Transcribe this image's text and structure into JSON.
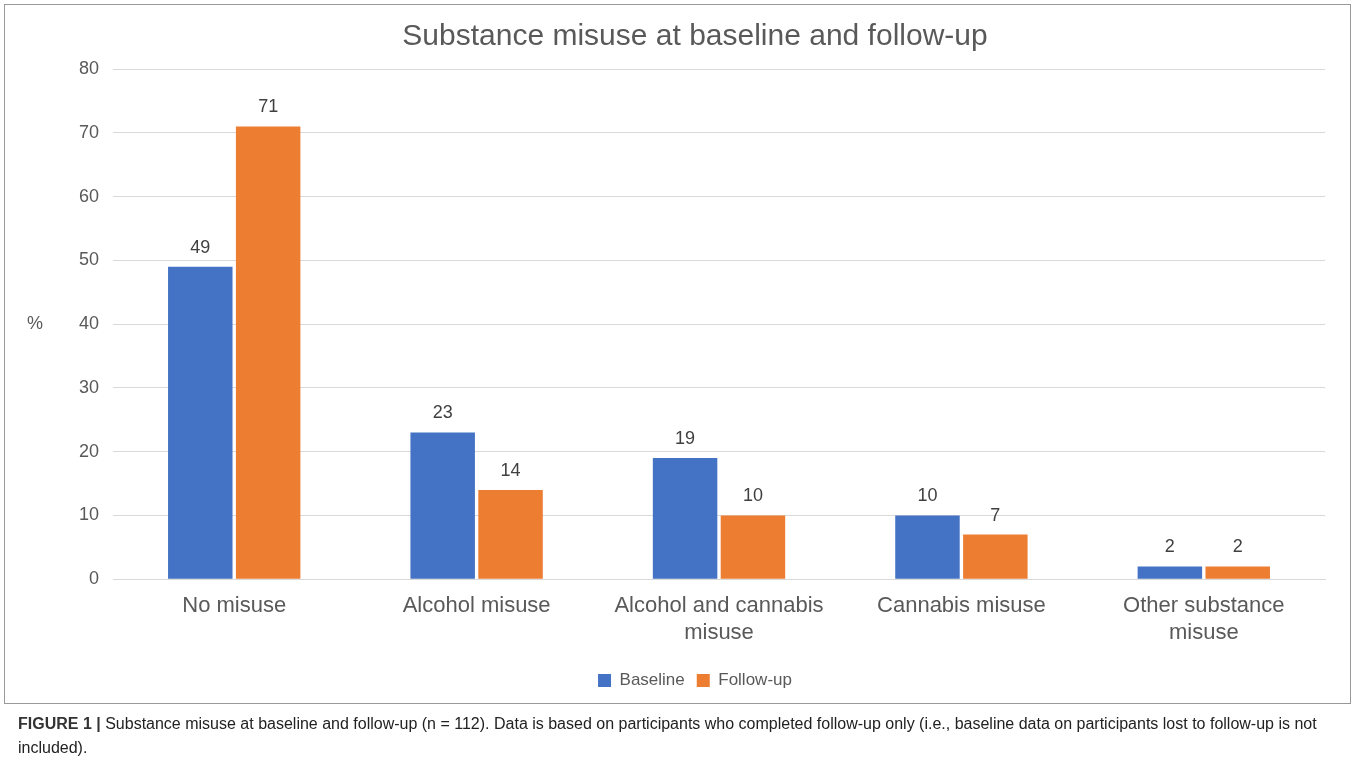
{
  "chart_data": {
    "type": "bar",
    "title": "Substance misuse at baseline and follow-up",
    "ylabel": "%",
    "categories": [
      "No misuse",
      "Alcohol misuse",
      "Alcohol and cannabis misuse",
      "Cannabis misuse",
      "Other substance misuse"
    ],
    "series": [
      {
        "name": "Baseline",
        "color": "#4472c4",
        "values": [
          49,
          23,
          19,
          10,
          2
        ]
      },
      {
        "name": "Follow-up",
        "color": "#ed7d31",
        "values": [
          71,
          14,
          10,
          7,
          2
        ]
      }
    ],
    "ylim": [
      0,
      80
    ],
    "yticks": [
      0,
      10,
      20,
      30,
      40,
      50,
      60,
      70,
      80
    ],
    "grid": "y",
    "legend": "bottom",
    "data_labels": true,
    "annotations": [
      "FIGURE 1 |",
      "Substance misuse at baseline and follow-up (n = 112). Data is based on participants who completed follow-up only (i.e., baseline data on participants lost to follow-up is not included)."
    ]
  }
}
